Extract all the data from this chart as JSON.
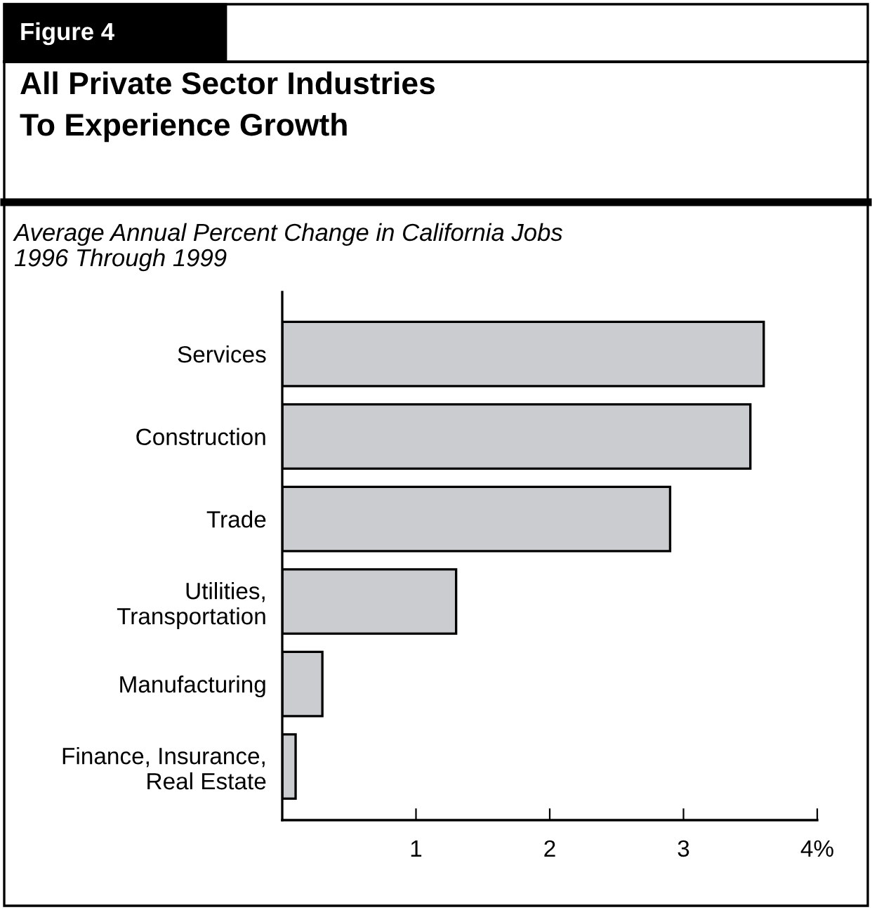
{
  "chart_data": {
    "type": "bar",
    "orientation": "horizontal",
    "title": "All Private Sector Industries\nTo Experience Growth",
    "subtitle": "Average Annual Percent Change in California Jobs\n1996 Through 1999",
    "annotations": [
      "Figure 4"
    ],
    "categories": [
      "Services",
      "Construction",
      "Trade",
      "Utilities,\nTransportation",
      "Manufacturing",
      "Finance, Insurance,\nReal Estate"
    ],
    "values": [
      3.6,
      3.5,
      2.9,
      1.3,
      0.3,
      0.1
    ],
    "color": "#cbcccf",
    "xlim": [
      0,
      4
    ],
    "xticks": [
      1,
      2,
      3,
      {
        "value": 4,
        "label": "4%"
      }
    ],
    "grid": false,
    "legend": false
  }
}
